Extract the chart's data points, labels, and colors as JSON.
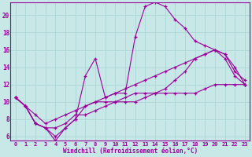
{
  "xlabel": "Windchill (Refroidissement éolien,°C)",
  "bg_color": "#c8e8e8",
  "grid_color": "#b0d8d8",
  "line_color": "#990099",
  "xlim": [
    -0.5,
    23.5
  ],
  "ylim": [
    5.5,
    21.5
  ],
  "yticks": [
    6,
    8,
    10,
    12,
    14,
    16,
    18,
    20
  ],
  "xticks": [
    0,
    1,
    2,
    3,
    4,
    5,
    6,
    7,
    8,
    9,
    10,
    11,
    12,
    13,
    14,
    15,
    16,
    17,
    18,
    19,
    20,
    21,
    22,
    23
  ],
  "series": [
    [
      10.5,
      9.5,
      7.5,
      7.0,
      7.0,
      7.5,
      8.5,
      8.5,
      9.0,
      9.5,
      10.0,
      10.5,
      11.0,
      11.0,
      11.0,
      11.0,
      11.0,
      11.0,
      11.0,
      11.5,
      12.0,
      12.0,
      12.0,
      12.0
    ],
    [
      10.5,
      9.5,
      7.5,
      7.0,
      5.5,
      7.0,
      8.0,
      13.0,
      15.0,
      10.5,
      11.0,
      11.0,
      17.5,
      21.0,
      21.5,
      21.0,
      19.5,
      18.5,
      17.0,
      16.5,
      16.0,
      15.0,
      13.0,
      12.0
    ],
    [
      10.5,
      9.5,
      8.5,
      7.5,
      8.0,
      8.5,
      9.0,
      9.5,
      10.0,
      10.5,
      11.0,
      11.5,
      12.0,
      12.5,
      13.0,
      13.5,
      14.0,
      14.5,
      15.0,
      15.5,
      16.0,
      15.5,
      14.0,
      12.0
    ],
    [
      10.5,
      9.5,
      7.5,
      7.0,
      6.0,
      7.0,
      8.0,
      9.5,
      10.0,
      10.0,
      10.0,
      10.0,
      10.0,
      10.5,
      11.0,
      11.5,
      12.5,
      13.5,
      15.0,
      15.5,
      16.0,
      15.5,
      13.5,
      12.5
    ]
  ]
}
